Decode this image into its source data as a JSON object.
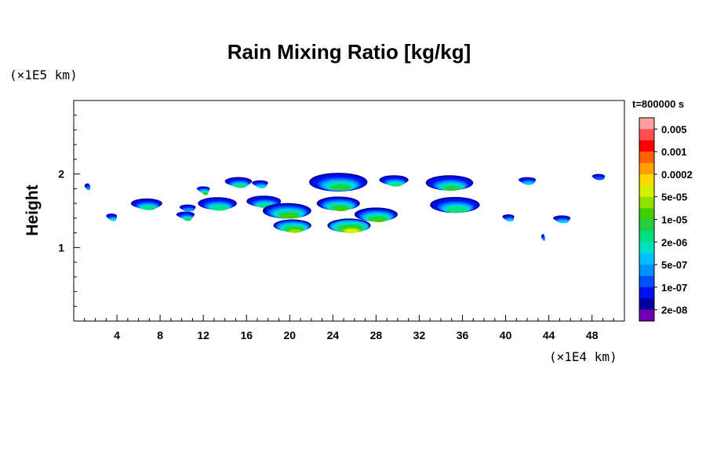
{
  "chart_data": {
    "type": "heatmap",
    "title": "Rain Mixing Ratio [kg/kg]",
    "xlabel": "",
    "ylabel": "Height",
    "x_unit": "(×1E4 km)",
    "y_unit": "(×1E5 km)",
    "time_label": "t=800000 s",
    "x_range": [
      0,
      51
    ],
    "y_range": [
      0,
      3
    ],
    "x_ticks": [
      4,
      8,
      12,
      16,
      20,
      24,
      28,
      32,
      36,
      40,
      44,
      48
    ],
    "x_tick_labels": [
      "4",
      "8",
      "12",
      "16",
      "20",
      "24",
      "28",
      "32",
      "36",
      "40",
      "44",
      "48"
    ],
    "y_ticks": [
      1,
      2
    ],
    "y_tick_labels": [
      "1",
      "2"
    ],
    "colorbar": {
      "labels": [
        "0.005",
        "0.001",
        "0.0002",
        "5e-05",
        "1e-05",
        "2e-06",
        "5e-07",
        "1e-07",
        "2e-08"
      ],
      "colors_top_to_bottom": [
        "#ff9fa0",
        "#ff5050",
        "#ff0000",
        "#ff6000",
        "#ffa000",
        "#ffd800",
        "#d8f000",
        "#90e000",
        "#40d000",
        "#20d040",
        "#00e080",
        "#00e0c0",
        "#00c0ff",
        "#0090ff",
        "#0050ff",
        "#0010f0",
        "#0000a0",
        "#7000b0"
      ]
    },
    "cells": [
      {
        "x": [
          1.0,
          1.5
        ],
        "y": 1.84,
        "level": 4
      },
      {
        "x": [
          3.0,
          4.0
        ],
        "y": 1.43,
        "level": 6
      },
      {
        "x": [
          5.3,
          8.2
        ],
        "y": 1.6,
        "level": 7
      },
      {
        "x": [
          9.5,
          11.2
        ],
        "y": 1.45,
        "level": 8
      },
      {
        "x": [
          9.8,
          11.3
        ],
        "y": 1.55,
        "level": 4
      },
      {
        "x": [
          11.4,
          12.6
        ],
        "y": 1.8,
        "level": 9
      },
      {
        "x": [
          11.5,
          15.1
        ],
        "y": 1.6,
        "level": 7
      },
      {
        "x": [
          14.0,
          16.5
        ],
        "y": 1.9,
        "level": 7
      },
      {
        "x": [
          16.5,
          18.0
        ],
        "y": 1.88,
        "level": 6
      },
      {
        "x": [
          16.0,
          19.2
        ],
        "y": 1.63,
        "level": 7
      },
      {
        "x": [
          17.5,
          22.0
        ],
        "y": 1.5,
        "level": 9
      },
      {
        "x": [
          18.5,
          22.0
        ],
        "y": 1.3,
        "level": 10
      },
      {
        "x": [
          21.8,
          27.2
        ],
        "y": 1.89,
        "level": 8
      },
      {
        "x": [
          22.5,
          26.5
        ],
        "y": 1.6,
        "level": 9
      },
      {
        "x": [
          23.5,
          27.5
        ],
        "y": 1.3,
        "level": 11
      },
      {
        "x": [
          26.0,
          30.0
        ],
        "y": 1.45,
        "level": 9
      },
      {
        "x": [
          28.3,
          31.0
        ],
        "y": 1.92,
        "level": 7
      },
      {
        "x": [
          32.6,
          37.0
        ],
        "y": 1.88,
        "level": 8
      },
      {
        "x": [
          33.0,
          37.6
        ],
        "y": 1.58,
        "level": 7
      },
      {
        "x": [
          39.7,
          40.8
        ],
        "y": 1.42,
        "level": 5
      },
      {
        "x": [
          41.2,
          42.8
        ],
        "y": 1.92,
        "level": 5
      },
      {
        "x": [
          44.4,
          46.0
        ],
        "y": 1.4,
        "level": 5
      },
      {
        "x": [
          48.0,
          49.2
        ],
        "y": 1.97,
        "level": 3
      },
      {
        "x": [
          43.3,
          43.6
        ],
        "y": 1.15,
        "level": 4
      }
    ]
  }
}
